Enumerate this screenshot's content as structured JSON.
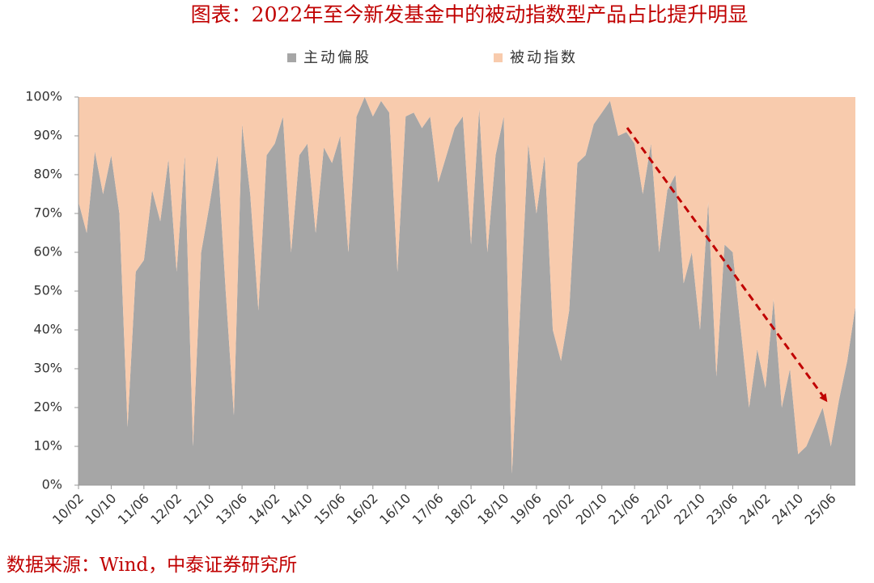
{
  "chart_data": {
    "type": "stacked_area",
    "title": "图表：2022年至今新发基金中的被动指数型产品占比提升明显",
    "source": "数据来源：Wind，中泰证券研究所",
    "categories": [
      "10/02",
      null,
      null,
      null,
      "10/10",
      null,
      null,
      null,
      "11/06",
      null,
      null,
      null,
      "12/02",
      null,
      null,
      null,
      "12/10",
      null,
      null,
      null,
      "13/06",
      null,
      null,
      null,
      "14/02",
      null,
      null,
      null,
      "14/10",
      null,
      null,
      null,
      "15/06",
      null,
      null,
      null,
      "16/02",
      null,
      null,
      null,
      "16/10",
      null,
      null,
      null,
      "17/06",
      null,
      null,
      null,
      "18/02",
      null,
      null,
      null,
      "18/10",
      null,
      null,
      null,
      "19/06",
      null,
      null,
      null,
      "20/02",
      null,
      null,
      null,
      "20/10",
      null,
      null,
      null,
      "21/06",
      null,
      null,
      null,
      "22/02",
      null,
      null,
      null,
      "22/10",
      null,
      null,
      null,
      "23/06",
      null,
      null,
      null,
      "24/02",
      null,
      null,
      null,
      "24/10",
      null,
      null,
      null,
      "25/06",
      null,
      null,
      null
    ],
    "series": [
      {
        "name": "主动偏股",
        "color": "#a6a6a6",
        "values": [
          73,
          65,
          86,
          75,
          85,
          70,
          15,
          55,
          58,
          76,
          68,
          84,
          55,
          85,
          10,
          60,
          72,
          85,
          50,
          18,
          93,
          75,
          45,
          85,
          88,
          95,
          60,
          85,
          88,
          65,
          87,
          83,
          90,
          60,
          95,
          100,
          95,
          99,
          96,
          55,
          95,
          96,
          92,
          95,
          78,
          85,
          92,
          95,
          62,
          97,
          60,
          85,
          95,
          3,
          45,
          88,
          70,
          85,
          40,
          32,
          45,
          83,
          85,
          93,
          96,
          99,
          90,
          91,
          88,
          75,
          88,
          60,
          76,
          80,
          52,
          60,
          40,
          73,
          28,
          62,
          60,
          40,
          20,
          35,
          25,
          48,
          20,
          30,
          8,
          10,
          15,
          20,
          10,
          22,
          32,
          46
        ]
      },
      {
        "name": "被动指数",
        "color": "#f8cbad",
        "values": [
          27,
          35,
          14,
          25,
          15,
          30,
          85,
          45,
          42,
          24,
          32,
          16,
          45,
          15,
          90,
          40,
          28,
          15,
          50,
          82,
          7,
          25,
          55,
          15,
          12,
          5,
          40,
          15,
          12,
          35,
          13,
          17,
          10,
          40,
          5,
          0,
          5,
          1,
          4,
          45,
          5,
          4,
          8,
          5,
          22,
          15,
          8,
          5,
          38,
          3,
          40,
          15,
          5,
          97,
          55,
          12,
          30,
          15,
          60,
          68,
          55,
          17,
          15,
          7,
          4,
          1,
          10,
          9,
          12,
          25,
          12,
          40,
          24,
          20,
          48,
          40,
          60,
          27,
          72,
          38,
          40,
          60,
          80,
          65,
          75,
          52,
          80,
          70,
          92,
          90,
          85,
          80,
          90,
          78,
          68,
          54
        ]
      }
    ],
    "ylim": [
      0,
      100
    ],
    "yticks": [
      {
        "value": 0,
        "label": "0%"
      },
      {
        "value": 10,
        "label": "10%"
      },
      {
        "value": 20,
        "label": "20%"
      },
      {
        "value": 30,
        "label": "30%"
      },
      {
        "value": 40,
        "label": "40%"
      },
      {
        "value": 50,
        "label": "50%"
      },
      {
        "value": 60,
        "label": "60%"
      },
      {
        "value": 70,
        "label": "70%"
      },
      {
        "value": 80,
        "label": "80%"
      },
      {
        "value": 90,
        "label": "90%"
      },
      {
        "value": 100,
        "label": "100%"
      }
    ],
    "legend": "top"
  }
}
